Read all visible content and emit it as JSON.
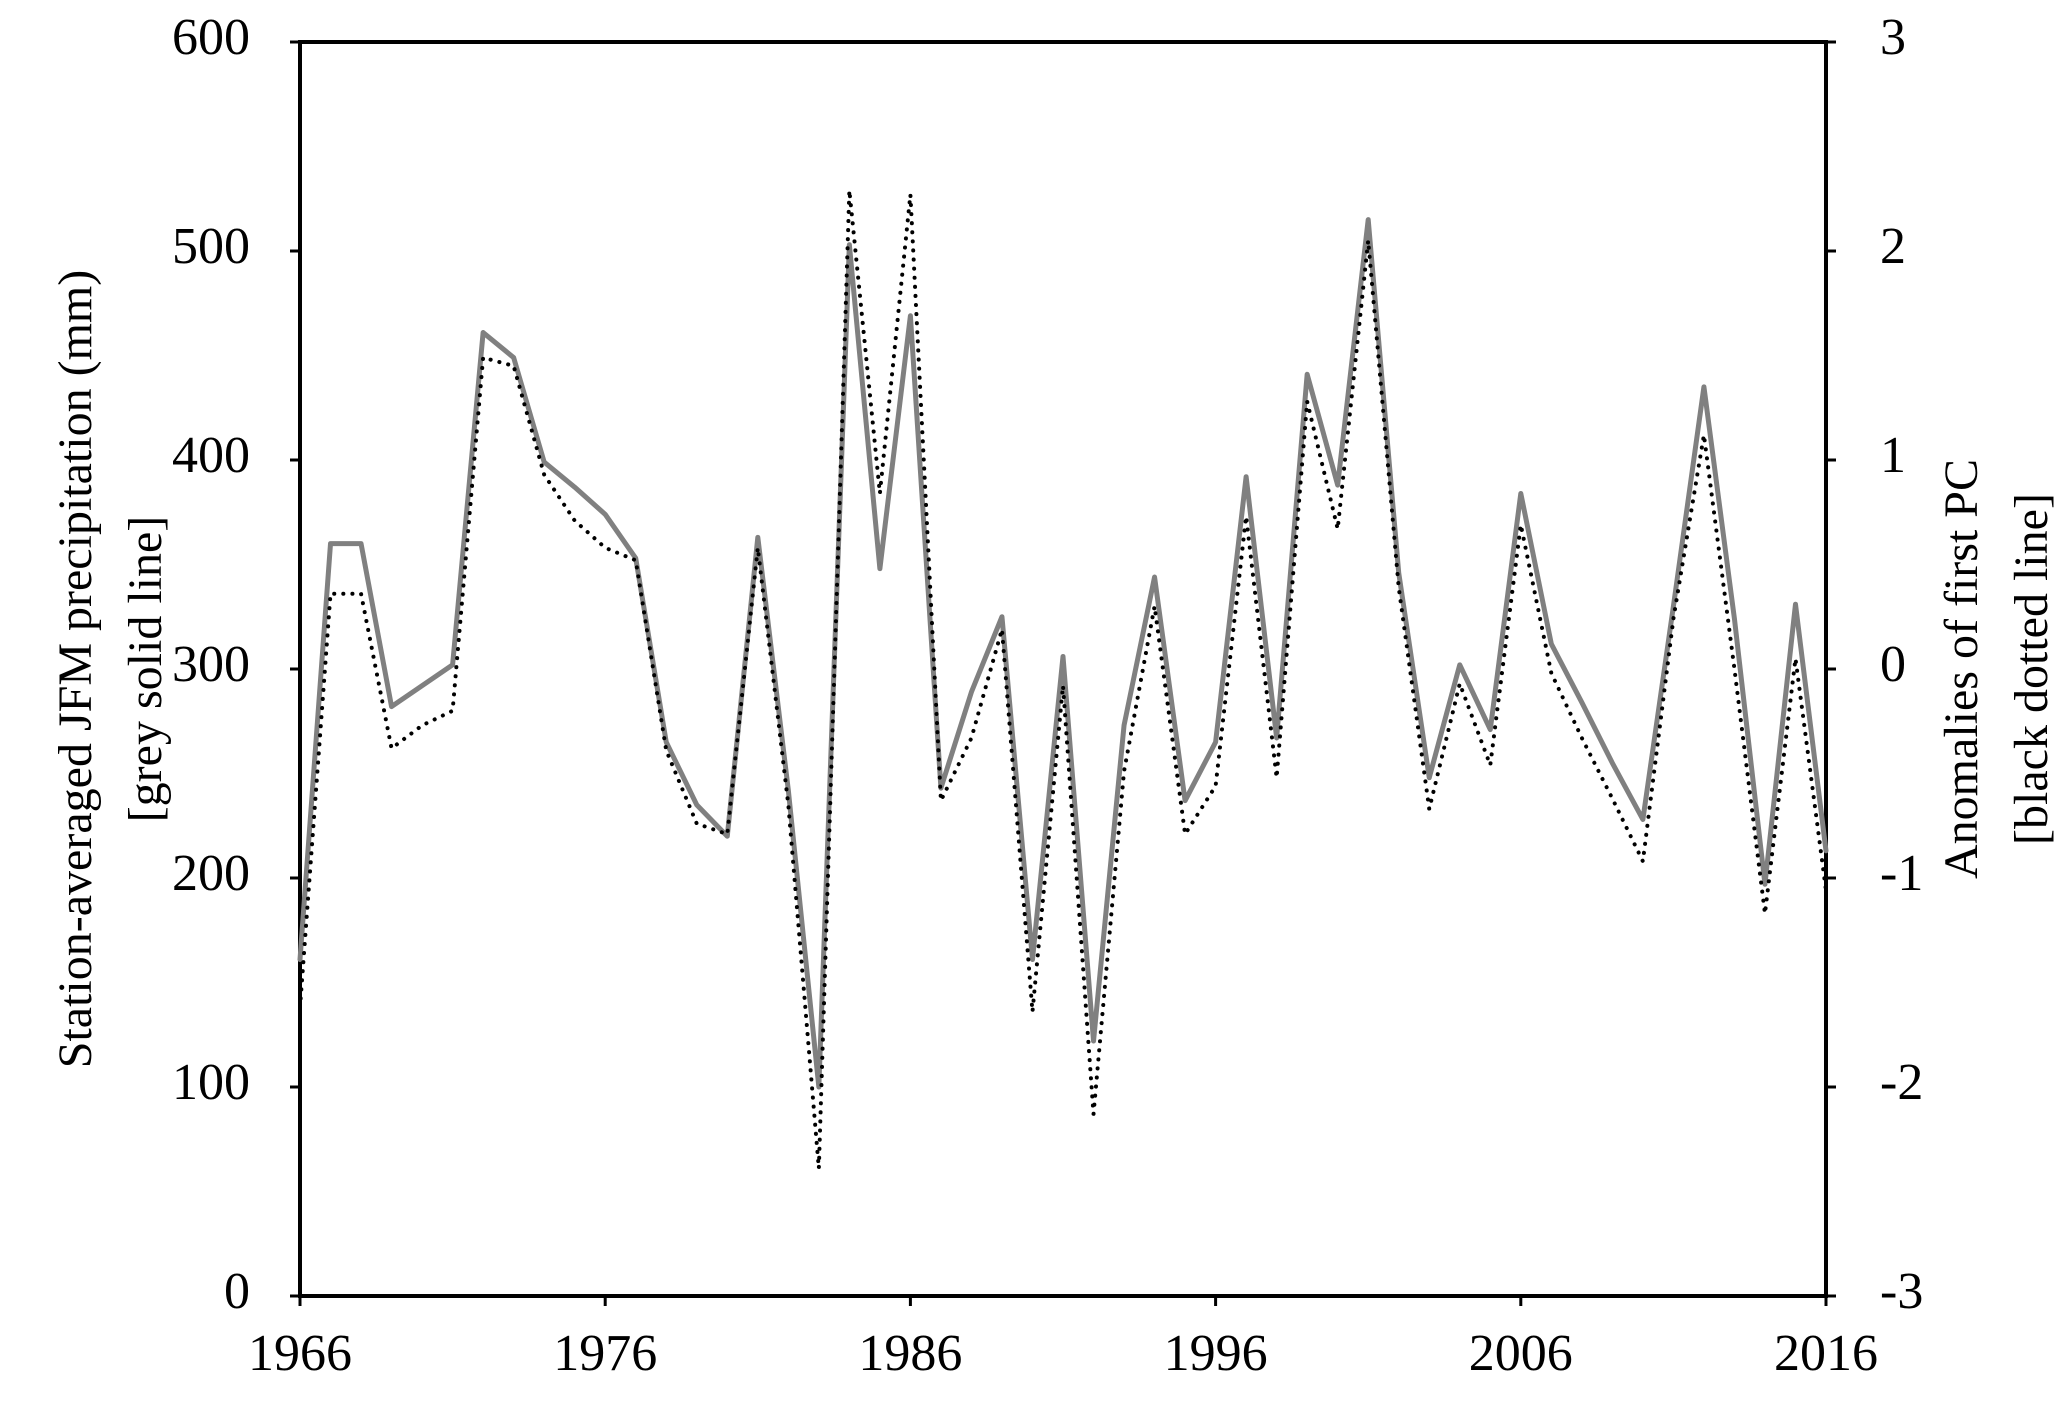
{
  "chart_data": {
    "type": "line",
    "y_label": [
      "Station-averaged JFM precipitation (mm)",
      "[grey solid line]"
    ],
    "y2_label": [
      "Anomalies of first PC",
      "[black dotted line]"
    ],
    "x": [
      1966,
      1967,
      1968,
      1969,
      1970,
      1971,
      1972,
      1973,
      1974,
      1975,
      1976,
      1977,
      1978,
      1979,
      1980,
      1981,
      1982,
      1983,
      1984,
      1985,
      1986,
      1987,
      1988,
      1989,
      1990,
      1991,
      1992,
      1993,
      1994,
      1995,
      1996,
      1997,
      1998,
      1999,
      2000,
      2001,
      2002,
      2003,
      2004,
      2005,
      2006,
      2007,
      2008,
      2009,
      2010,
      2011,
      2012,
      2013,
      2014,
      2015,
      2016
    ],
    "series": [
      {
        "name": "grey solid line",
        "color": "#808080",
        "dotted": false,
        "values": [
          161,
          360,
          360,
          282,
          292,
          302,
          461,
          449,
          399,
          387,
          374,
          353,
          265,
          235,
          220,
          363,
          242,
          100,
          503,
          348,
          469,
          243,
          289,
          325,
          161,
          306,
          122,
          273,
          344,
          237,
          265,
          392,
          267,
          441,
          388,
          515,
          346,
          248,
          302,
          271,
          384,
          312,
          284,
          255,
          228,
          330,
          435,
          324,
          197,
          331,
          213
        ]
      },
      {
        "name": "black dotted line",
        "color": "#000000",
        "dotted": true,
        "axis": "y2",
        "values": [
          -1.62,
          0.36,
          0.36,
          -0.38,
          -0.27,
          -0.2,
          1.49,
          1.45,
          0.93,
          0.71,
          0.58,
          0.52,
          -0.39,
          -0.74,
          -0.79,
          0.58,
          -0.65,
          -2.39,
          2.29,
          0.84,
          2.27,
          -0.63,
          -0.33,
          0.19,
          -1.64,
          -0.08,
          -2.13,
          -0.49,
          0.3,
          -0.79,
          -0.56,
          0.73,
          -0.52,
          1.28,
          0.67,
          2.05,
          0.39,
          -0.67,
          -0.07,
          -0.46,
          0.69,
          -0.02,
          -0.33,
          -0.62,
          -0.92,
          0.24,
          1.12,
          0,
          -1.17,
          0.05,
          -1.06
        ]
      }
    ],
    "xlim": [
      1966,
      2016
    ],
    "xticks": [
      1966,
      1976,
      1986,
      1996,
      2006,
      2016
    ],
    "ylim": [
      0,
      600
    ],
    "yticks": [
      0,
      100,
      200,
      300,
      400,
      500,
      600
    ],
    "y2lim": [
      -3,
      3
    ],
    "y2ticks": [
      -3,
      -2,
      -1,
      0,
      1,
      2,
      3
    ],
    "grid": false
  }
}
